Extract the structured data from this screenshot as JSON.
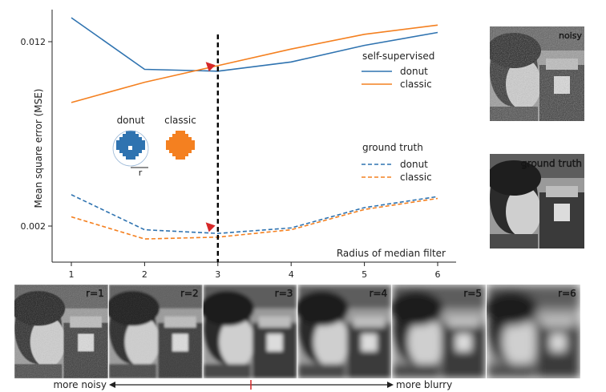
{
  "chart_data": {
    "type": "line",
    "x": [
      1,
      2,
      3,
      4,
      5,
      6
    ],
    "xlabel": "Radius of median filter",
    "ylabel": "Mean square error (MSE)",
    "ylim": [
      0.0,
      0.014
    ],
    "yticks": [
      {
        "value": 0.002,
        "label": "0.002"
      },
      {
        "value": 0.012,
        "label": "0.012"
      }
    ],
    "xticks": [
      "1",
      "2",
      "3",
      "4",
      "5",
      "6"
    ],
    "series": [
      {
        "name": "donut",
        "group": "self-supervised",
        "color": "#2f73b0",
        "style": "solid",
        "values": [
          0.0133,
          0.0105,
          0.0104,
          0.0109,
          0.0118,
          0.0125
        ]
      },
      {
        "name": "classic",
        "group": "self-supervised",
        "color": "#f48020",
        "style": "solid",
        "values": [
          0.0087,
          0.0098,
          0.0107,
          0.0116,
          0.0124,
          0.0129
        ]
      },
      {
        "name": "donut",
        "group": "ground truth",
        "color": "#2f73b0",
        "style": "dashed",
        "values": [
          0.0037,
          0.0018,
          0.0016,
          0.0019,
          0.003,
          0.0036
        ]
      },
      {
        "name": "classic",
        "group": "ground truth",
        "color": "#f48020",
        "style": "dashed",
        "values": [
          0.0025,
          0.0013,
          0.0014,
          0.0018,
          0.0029,
          0.0035
        ]
      }
    ],
    "vline_x": 3,
    "markers": [
      {
        "x": 2.9,
        "y": 0.0109,
        "color": "#d62728"
      },
      {
        "x": 2.9,
        "y": 0.0022,
        "color": "#d62728"
      }
    ],
    "legend": {
      "placement": "right",
      "groups": [
        {
          "title": "self-supervised",
          "items": [
            "donut",
            "classic"
          ]
        },
        {
          "title": "ground truth",
          "items": [
            "donut",
            "classic"
          ]
        }
      ]
    }
  },
  "inset": {
    "donut_label": "donut",
    "classic_label": "classic",
    "radius_label": "r",
    "donut_color": "#2f73b0",
    "classic_color": "#f48020"
  },
  "side_images": [
    {
      "label": "noisy"
    },
    {
      "label": "ground truth"
    }
  ],
  "strip": {
    "panels": [
      "r=1",
      "r=2",
      "r=3",
      "r=4",
      "r=5",
      "r=6"
    ],
    "left_label": "more noisy",
    "right_label": "more blurry"
  }
}
